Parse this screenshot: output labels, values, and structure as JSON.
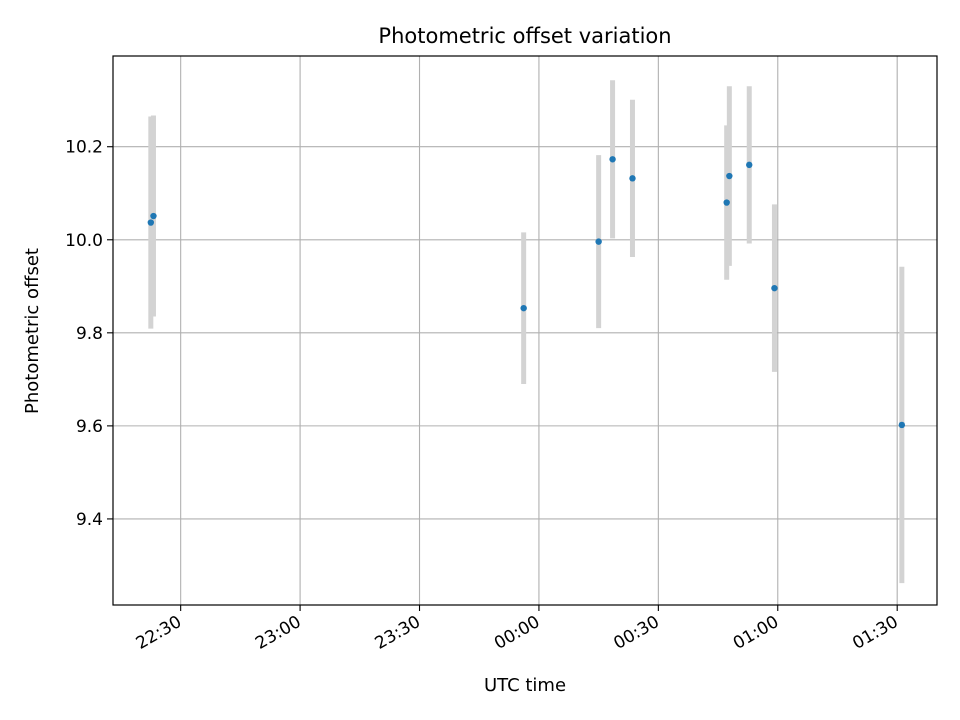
{
  "chart_data": {
    "type": "scatter",
    "title": "Photometric offset variation",
    "xlabel": "UTC time",
    "ylabel": "Photometric offset",
    "grid": true,
    "x_ticks": [
      "22:30",
      "23:00",
      "23:30",
      "00:00",
      "00:30",
      "01:00",
      "01:30"
    ],
    "y_ticks": [
      "9.4",
      "9.6",
      "9.8",
      "10.0",
      "10.2"
    ],
    "y_tick_values": [
      9.4,
      9.6,
      9.8,
      10.0,
      10.2
    ],
    "x_axis_start": "22:13",
    "x_axis_end": "01:40",
    "ylim": [
      9.215,
      10.395
    ],
    "point_color": "#1f77b4",
    "errorbar_color": "#d3d3d3",
    "points": [
      {
        "x": "22:22:30",
        "y": 10.037,
        "err": 0.228
      },
      {
        "x": "22:23:10",
        "y": 10.051,
        "err": 0.216
      },
      {
        "x": "23:56:10",
        "y": 9.853,
        "err": 0.163
      },
      {
        "x": "00:15:00",
        "y": 9.996,
        "err": 0.186
      },
      {
        "x": "00:18:30",
        "y": 10.173,
        "err": 0.17
      },
      {
        "x": "00:23:30",
        "y": 10.132,
        "err": 0.169
      },
      {
        "x": "00:47:10",
        "y": 10.08,
        "err": 0.166
      },
      {
        "x": "00:47:50",
        "y": 10.137,
        "err": 0.193
      },
      {
        "x": "00:52:50",
        "y": 10.161,
        "err": 0.169
      },
      {
        "x": "00:59:10",
        "y": 9.896,
        "err": 0.18
      },
      {
        "x": "01:31:10",
        "y": 9.602,
        "err": 0.34
      }
    ]
  }
}
